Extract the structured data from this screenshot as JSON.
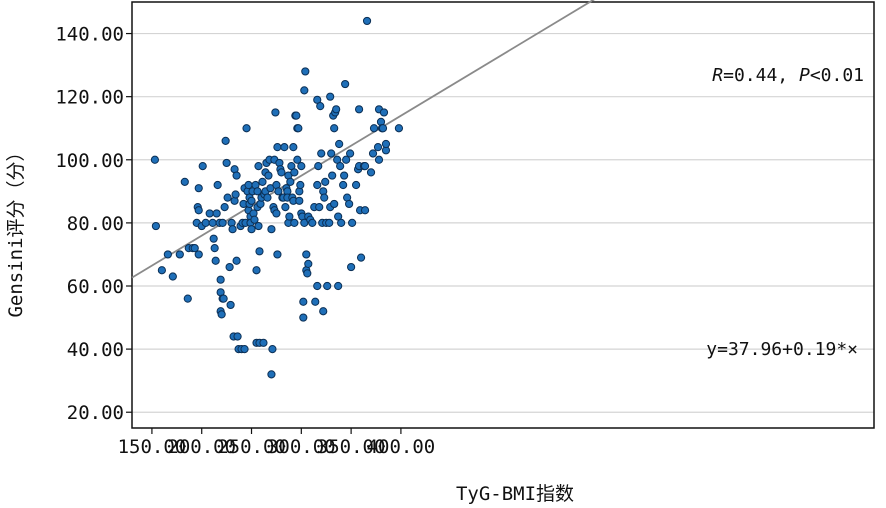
{
  "chart_data": {
    "type": "scatter",
    "xlabel": "TyG-BMI指数",
    "ylabel": "Gensini评分（分）",
    "xlim": [
      130,
      875
    ],
    "ylim": [
      15,
      150
    ],
    "x_ticks": [
      "150.00",
      "200.00",
      "250.00",
      "300.00",
      "350.00",
      "400.00"
    ],
    "y_ticks": [
      "20.00",
      "40.00",
      "60.00",
      "80.00",
      "100.00",
      "120.00",
      "140.00"
    ],
    "grid": "horizontal",
    "point_color": "#1f6fb8",
    "line_color": "#8a8a8a",
    "fit": {
      "intercept": 37.96,
      "slope": 0.19
    },
    "annotation_r": {
      "R_label": "R",
      "R_value": "=0.44, ",
      "P_label": "P",
      "P_value": "<0.01"
    },
    "annotation_eq": "y=37.96+0.19*×",
    "points": [
      [
        153,
        100
      ],
      [
        154,
        79
      ],
      [
        160,
        65
      ],
      [
        166,
        70
      ],
      [
        171,
        63
      ],
      [
        178,
        70
      ],
      [
        183,
        93
      ],
      [
        186,
        56
      ],
      [
        187,
        72
      ],
      [
        191,
        72
      ],
      [
        193,
        72
      ],
      [
        195,
        80
      ],
      [
        196,
        85
      ],
      [
        197,
        84
      ],
      [
        197,
        70
      ],
      [
        197,
        91
      ],
      [
        200,
        79
      ],
      [
        201,
        98
      ],
      [
        204,
        80
      ],
      [
        208,
        83
      ],
      [
        211,
        80
      ],
      [
        212,
        75
      ],
      [
        213,
        72
      ],
      [
        214,
        68
      ],
      [
        215,
        83
      ],
      [
        216,
        92
      ],
      [
        218,
        80
      ],
      [
        219,
        58
      ],
      [
        219,
        62
      ],
      [
        219,
        52
      ],
      [
        220,
        51
      ],
      [
        221,
        80
      ],
      [
        221,
        56
      ],
      [
        222,
        56
      ],
      [
        223,
        85
      ],
      [
        224,
        106
      ],
      [
        225,
        99
      ],
      [
        226,
        88
      ],
      [
        228,
        66
      ],
      [
        229,
        54
      ],
      [
        230,
        80
      ],
      [
        231,
        78
      ],
      [
        232,
        44
      ],
      [
        233,
        97
      ],
      [
        233,
        87
      ],
      [
        234,
        89
      ],
      [
        235,
        95
      ],
      [
        235,
        68
      ],
      [
        236,
        44
      ],
      [
        237,
        40
      ],
      [
        239,
        79
      ],
      [
        240,
        40
      ],
      [
        241,
        80
      ],
      [
        242,
        86
      ],
      [
        243,
        40
      ],
      [
        243,
        91
      ],
      [
        244,
        80
      ],
      [
        245,
        110
      ],
      [
        246,
        90
      ],
      [
        247,
        92
      ],
      [
        247,
        84
      ],
      [
        248,
        86
      ],
      [
        248,
        88
      ],
      [
        249,
        82
      ],
      [
        249,
        80
      ],
      [
        250,
        78
      ],
      [
        250,
        87
      ],
      [
        251,
        90
      ],
      [
        252,
        83
      ],
      [
        253,
        81
      ],
      [
        254,
        92
      ],
      [
        255,
        42
      ],
      [
        255,
        65
      ],
      [
        256,
        85
      ],
      [
        256,
        90
      ],
      [
        257,
        98
      ],
      [
        257,
        79
      ],
      [
        258,
        71
      ],
      [
        258,
        42
      ],
      [
        259,
        86
      ],
      [
        260,
        88
      ],
      [
        261,
        93
      ],
      [
        262,
        42
      ],
      [
        263,
        89
      ],
      [
        264,
        90
      ],
      [
        264,
        96
      ],
      [
        265,
        99
      ],
      [
        266,
        88
      ],
      [
        267,
        95
      ],
      [
        268,
        100
      ],
      [
        269,
        91
      ],
      [
        270,
        78
      ],
      [
        270,
        32
      ],
      [
        271,
        40
      ],
      [
        272,
        85
      ],
      [
        273,
        84
      ],
      [
        273,
        100
      ],
      [
        274,
        115
      ],
      [
        275,
        92
      ],
      [
        275,
        83
      ],
      [
        276,
        104
      ],
      [
        276,
        70
      ],
      [
        277,
        90
      ],
      [
        278,
        99
      ],
      [
        279,
        97
      ],
      [
        280,
        96
      ],
      [
        281,
        88
      ],
      [
        282,
        88
      ],
      [
        283,
        104
      ],
      [
        284,
        85
      ],
      [
        285,
        91
      ],
      [
        286,
        90
      ],
      [
        286,
        88
      ],
      [
        287,
        80
      ],
      [
        287,
        95
      ],
      [
        288,
        82
      ],
      [
        289,
        93
      ],
      [
        290,
        98
      ],
      [
        291,
        88
      ],
      [
        292,
        87
      ],
      [
        292,
        104
      ],
      [
        293,
        96
      ],
      [
        293,
        80
      ],
      [
        294,
        114
      ],
      [
        295,
        114
      ],
      [
        296,
        110
      ],
      [
        296,
        100
      ],
      [
        297,
        110
      ],
      [
        298,
        90
      ],
      [
        298,
        87
      ],
      [
        299,
        92
      ],
      [
        300,
        98
      ],
      [
        300,
        83
      ],
      [
        301,
        82
      ],
      [
        302,
        55
      ],
      [
        302,
        50
      ],
      [
        303,
        80
      ],
      [
        303,
        122
      ],
      [
        304,
        128
      ],
      [
        305,
        65
      ],
      [
        305,
        70
      ],
      [
        306,
        64
      ],
      [
        307,
        82
      ],
      [
        307,
        67
      ],
      [
        309,
        81
      ],
      [
        311,
        80
      ],
      [
        313,
        85
      ],
      [
        314,
        55
      ],
      [
        316,
        92
      ],
      [
        316,
        60
      ],
      [
        316,
        119
      ],
      [
        317,
        98
      ],
      [
        318,
        85
      ],
      [
        319,
        117
      ],
      [
        320,
        102
      ],
      [
        321,
        80
      ],
      [
        322,
        90
      ],
      [
        322,
        52
      ],
      [
        323,
        88
      ],
      [
        324,
        93
      ],
      [
        325,
        80
      ],
      [
        326,
        60
      ],
      [
        328,
        80
      ],
      [
        329,
        120
      ],
      [
        329,
        85
      ],
      [
        330,
        102
      ],
      [
        331,
        95
      ],
      [
        332,
        114
      ],
      [
        333,
        86
      ],
      [
        333,
        110
      ],
      [
        334,
        115
      ],
      [
        335,
        116
      ],
      [
        336,
        100
      ],
      [
        337,
        82
      ],
      [
        337,
        60
      ],
      [
        338,
        105
      ],
      [
        339,
        98
      ],
      [
        340,
        80
      ],
      [
        342,
        92
      ],
      [
        343,
        95
      ],
      [
        344,
        124
      ],
      [
        345,
        100
      ],
      [
        346,
        88
      ],
      [
        348,
        86
      ],
      [
        349,
        102
      ],
      [
        350,
        66
      ],
      [
        351,
        80
      ],
      [
        355,
        92
      ],
      [
        357,
        97
      ],
      [
        358,
        98
      ],
      [
        358,
        116
      ],
      [
        359,
        84
      ],
      [
        360,
        69
      ],
      [
        363,
        98
      ],
      [
        364,
        84
      ],
      [
        364,
        98
      ],
      [
        366,
        144
      ],
      [
        370,
        96
      ],
      [
        372,
        102
      ],
      [
        373,
        110
      ],
      [
        377,
        104
      ],
      [
        378,
        100
      ],
      [
        378,
        116
      ],
      [
        380,
        112
      ],
      [
        381,
        110
      ],
      [
        382,
        110
      ],
      [
        383,
        115
      ],
      [
        385,
        103
      ],
      [
        385,
        105
      ],
      [
        398,
        110
      ]
    ]
  }
}
